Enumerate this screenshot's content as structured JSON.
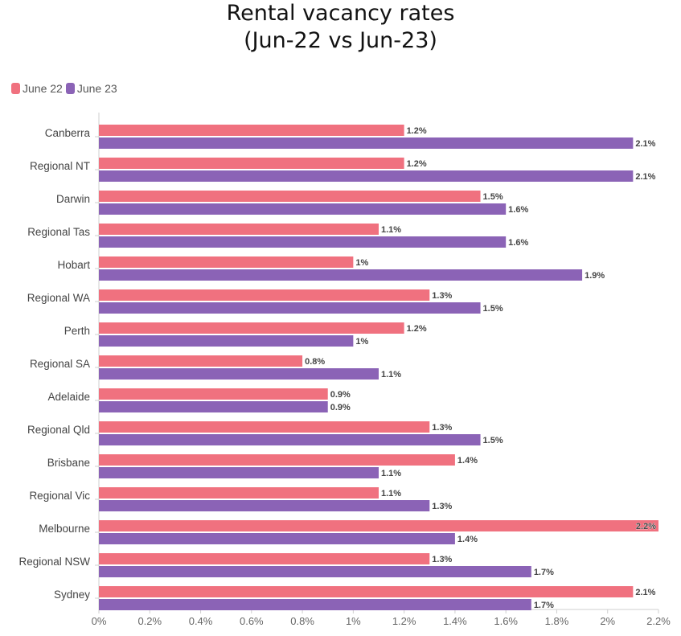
{
  "chart_data": {
    "type": "bar",
    "orientation": "horizontal",
    "title_lines": [
      "Rental vacancy rates",
      "(Jun-22 vs Jun-23)"
    ],
    "categories": [
      "Canberra",
      "Regional NT",
      "Darwin",
      "Regional Tas",
      "Hobart",
      "Regional WA",
      "Perth",
      "Regional SA",
      "Adelaide",
      "Regional Qld",
      "Brisbane",
      "Regional Vic",
      "Melbourne",
      "Regional NSW",
      "Sydney"
    ],
    "series": [
      {
        "name": "June 22",
        "color": "#f0717f",
        "values": [
          1.2,
          1.2,
          1.5,
          1.1,
          1.0,
          1.3,
          1.2,
          0.8,
          0.9,
          1.3,
          1.4,
          1.1,
          2.2,
          1.3,
          2.1
        ],
        "labels": [
          "1.2%",
          "1.2%",
          "1.5%",
          "1.1%",
          "1%",
          "1.3%",
          "1.2%",
          "0.8%",
          "0.9%",
          "1.3%",
          "1.4%",
          "1.1%",
          "2.2%",
          "1.3%",
          "2.1%"
        ]
      },
      {
        "name": "June 23",
        "color": "#8b63b6",
        "values": [
          2.1,
          2.1,
          1.6,
          1.6,
          1.9,
          1.5,
          1.0,
          1.1,
          0.9,
          1.5,
          1.1,
          1.3,
          1.4,
          1.7,
          1.7
        ],
        "labels": [
          "2.1%",
          "2.1%",
          "1.6%",
          "1.6%",
          "1.9%",
          "1.5%",
          "1%",
          "1.1%",
          "0.9%",
          "1.5%",
          "1.1%",
          "1.3%",
          "1.4%",
          "1.7%",
          "1.7%"
        ]
      }
    ],
    "xlim": [
      0,
      2.2
    ],
    "x_ticks": [
      0,
      0.2,
      0.4,
      0.6,
      0.8,
      1.0,
      1.2,
      1.4,
      1.6,
      1.8,
      2.0,
      2.2
    ],
    "x_tick_labels": [
      "0%",
      "0.2%",
      "0.4%",
      "0.6%",
      "0.8%",
      "1%",
      "1.2%",
      "1.4%",
      "1.6%",
      "1.8%",
      "2%",
      "2.2%"
    ],
    "grid": false,
    "legend_position": "top-left"
  }
}
